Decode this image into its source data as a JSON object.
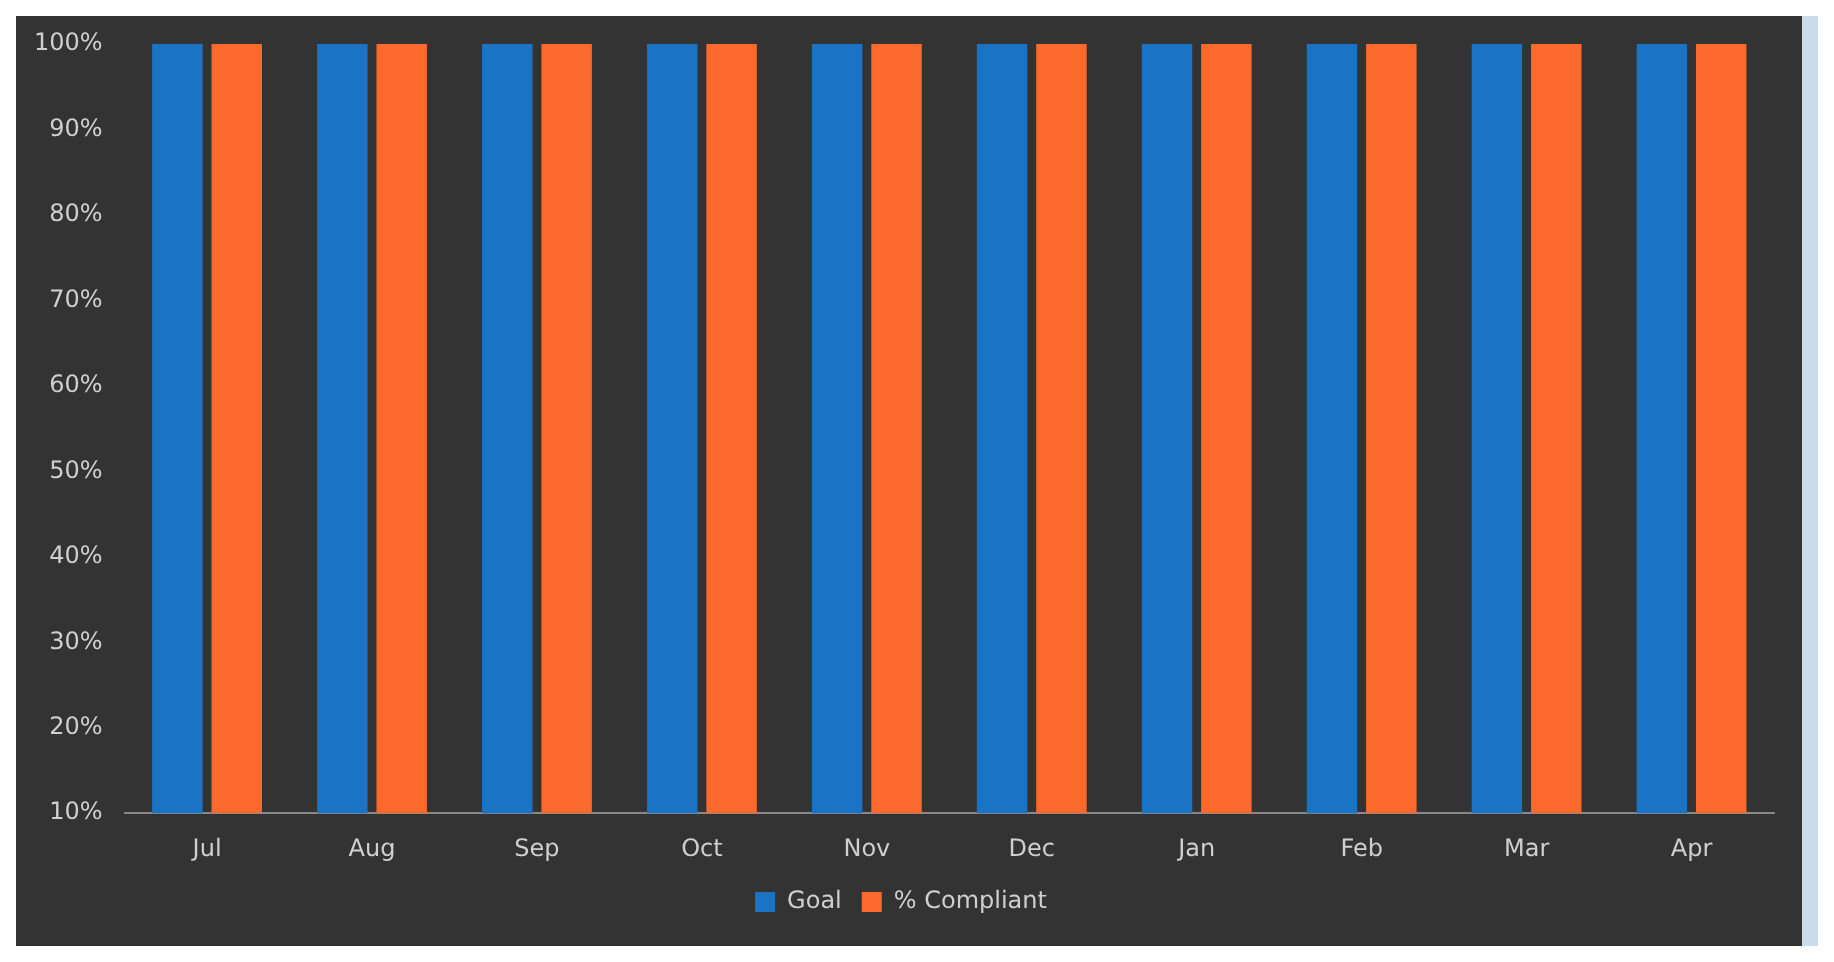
{
  "chart_data": {
    "type": "bar",
    "categories": [
      "Jul",
      "Aug",
      "Sep",
      "Oct",
      "Nov",
      "Dec",
      "Jan",
      "Feb",
      "Mar",
      "Apr"
    ],
    "series": [
      {
        "name": "Goal",
        "color": "#1b73c6",
        "values": [
          100,
          100,
          100,
          100,
          100,
          100,
          100,
          100,
          100,
          100
        ]
      },
      {
        "name": "% Compliant",
        "color": "#fb6a2c",
        "values": [
          100,
          100,
          100,
          100,
          100,
          100,
          100,
          100,
          100,
          100
        ]
      }
    ],
    "ylim": [
      10,
      100
    ],
    "yticks": [
      {
        "value": 10,
        "label": "10%"
      },
      {
        "value": 20,
        "label": "20%"
      },
      {
        "value": 30,
        "label": "30%"
      },
      {
        "value": 40,
        "label": "40%"
      },
      {
        "value": 50,
        "label": "50%"
      },
      {
        "value": 60,
        "label": "60%"
      },
      {
        "value": 70,
        "label": "70%"
      },
      {
        "value": 80,
        "label": "80%"
      },
      {
        "value": 90,
        "label": "90%"
      },
      {
        "value": 100,
        "label": "100%"
      }
    ],
    "grid": false,
    "legend": "bottom"
  }
}
